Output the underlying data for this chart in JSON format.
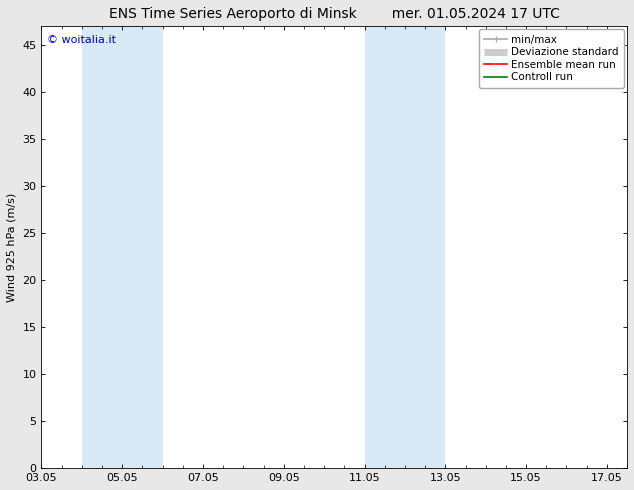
{
  "title_left": "ENS Time Series Aeroporto di Minsk",
  "title_right": "mer. 01.05.2024 17 UTC",
  "ylabel": "Wind 925 hPa (m/s)",
  "watermark": "© woitalia.it",
  "ylim": [
    0,
    47
  ],
  "yticks": [
    0,
    5,
    10,
    15,
    20,
    25,
    30,
    35,
    40,
    45
  ],
  "xtick_labels": [
    "03.05",
    "05.05",
    "07.05",
    "09.05",
    "11.05",
    "13.05",
    "15.05",
    "17.05"
  ],
  "xtick_positions": [
    0,
    2,
    4,
    6,
    8,
    10,
    12,
    14
  ],
  "shaded_bands": [
    {
      "x_start": 1.0,
      "x_end": 3.0,
      "color": "#d8eaf7"
    },
    {
      "x_start": 8.0,
      "x_end": 9.0,
      "color": "#d8eaf7"
    },
    {
      "x_start": 9.0,
      "x_end": 10.0,
      "color": "#d8eaf7"
    }
  ],
  "background_color": "#ffffff",
  "fig_background_color": "#e8e8e8",
  "legend_minmax_color": "#aaaaaa",
  "legend_dev_color": "#cccccc",
  "legend_ens_color": "#ff0000",
  "legend_ctrl_color": "#008000",
  "font_family": "DejaVu Sans",
  "title_fontsize": 10,
  "tick_fontsize": 8,
  "legend_fontsize": 7.5,
  "ylabel_fontsize": 8,
  "watermark_color": "#0000cc",
  "watermark_fontsize": 8,
  "spine_color": "#555555",
  "tick_color": "#000000"
}
